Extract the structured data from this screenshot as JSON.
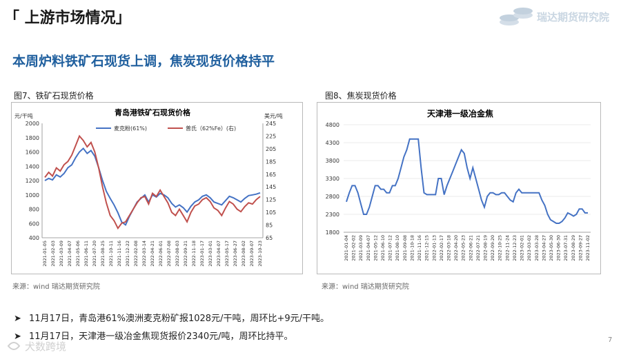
{
  "header": {
    "section_title": "「 上游市场情况」",
    "logo_text": "瑞达期货研究院"
  },
  "headline": "本周炉料铁矿石现货上调，焦炭现货价格持平",
  "figures": {
    "fig7": {
      "caption": "图7、铁矿石现货价格",
      "source": "来源：wind   瑞达期货研究院"
    },
    "fig8": {
      "caption": "图8、焦炭现货价格",
      "source": "来源：wind   瑞达期货研究院"
    }
  },
  "bullets": [
    "11月17日，青岛港61%澳洲麦克粉矿报1028元/干吨，周环比+9元/干吨。",
    "11月17日，天津港一级冶金焦现货报价2340元/吨，周环比持平。"
  ],
  "page_number": "7",
  "watermark_text": "犬数跨境",
  "chart_data": [
    {
      "type": "line",
      "title": "青岛港铁矿石现货价格",
      "ylabel": "元/干吨",
      "y2label": "美元/吨",
      "ylim": [
        400,
        2000
      ],
      "yticks": [
        400,
        600,
        800,
        1000,
        1200,
        1400,
        1600,
        1800,
        2000
      ],
      "y2lim": [
        65,
        245
      ],
      "y2ticks": [
        65,
        85,
        105,
        125,
        145,
        165,
        185,
        205,
        225,
        245
      ],
      "legend_position": "top-center",
      "xticks": [
        "2021-01-05",
        "2021-02-03",
        "2021-03-09",
        "2021-04-07",
        "2021-05-06",
        "2021-06-11",
        "2021-07-20",
        "2021-08-25",
        "2021-10-11",
        "2021-11-16",
        "2021-12-22",
        "2022-02-08",
        "2022-03-14",
        "2022-04-21",
        "2022-06-01",
        "2022-07-08",
        "2022-08-03",
        "2022-09-21",
        "2022-11-18",
        "2023-01-17",
        "2023-03-01",
        "2023-04-07",
        "2023-05-17",
        "2023-06-27",
        "2023-08-02",
        "2023-09-07",
        "2023-10-23"
      ],
      "series": [
        {
          "name": "麦克粉(61%)",
          "axis": "left",
          "color": "#4472c4",
          "values": [
            1200,
            1230,
            1210,
            1280,
            1250,
            1300,
            1380,
            1420,
            1520,
            1600,
            1650,
            1580,
            1620,
            1540,
            1380,
            1200,
            1050,
            950,
            860,
            750,
            620,
            580,
            700,
            800,
            900,
            950,
            1000,
            900,
            1000,
            970,
            1020,
            1000,
            960,
            880,
            830,
            860,
            820,
            760,
            840,
            900,
            930,
            980,
            1000,
            960,
            900,
            880,
            860,
            920,
            980,
            960,
            930,
            900,
            950,
            990,
            1000,
            1010,
            1028
          ]
        },
        {
          "name": "普氏（62%Fe）(右)",
          "axis": "right",
          "color": "#c0504d",
          "values": [
            160,
            168,
            162,
            175,
            170,
            180,
            185,
            195,
            210,
            225,
            218,
            208,
            215,
            200,
            175,
            145,
            120,
            100,
            92,
            80,
            88,
            90,
            100,
            110,
            120,
            128,
            130,
            118,
            135,
            130,
            140,
            130,
            120,
            105,
            100,
            110,
            100,
            90,
            105,
            115,
            118,
            125,
            128,
            122,
            112,
            108,
            100,
            112,
            122,
            118,
            110,
            106,
            114,
            120,
            118,
            125,
            130
          ]
        }
      ]
    },
    {
      "type": "line",
      "title": "天津港一级冶金焦",
      "ylim": [
        1800,
        4800
      ],
      "yticks": [
        1800,
        2300,
        2800,
        3300,
        3800,
        4300,
        4800
      ],
      "xticks": [
        "2021-01-04",
        "2021-02-02",
        "2021-03-09",
        "2021-04-07",
        "2021-05-12",
        "2021-06-10",
        "2021-07-12",
        "2021-08-10",
        "2021-09-08",
        "2021-10-18",
        "2021-11-16",
        "2021-12-15",
        "2022-01-13",
        "2022-02-17",
        "2022-03-18",
        "2022-04-20",
        "2022-05-23",
        "2022-06-21",
        "2022-07-21",
        "2022-08-19",
        "2022-09-20",
        "2022-10-25",
        "2022-11-24",
        "2022-12-23",
        "2023-02-01",
        "2023-03-02",
        "2023-03-28",
        "2023-04-27",
        "2023-05-30",
        "2023-06-30",
        "2023-07-31",
        "2023-08-29",
        "2023-09-27",
        "2023-11-02"
      ],
      "series": [
        {
          "name": "",
          "color": "#4472c4",
          "values": [
            2650,
            2900,
            3100,
            3100,
            2900,
            2600,
            2300,
            2300,
            2500,
            2800,
            3100,
            3100,
            3000,
            3000,
            2900,
            2900,
            3100,
            3100,
            3300,
            3600,
            3900,
            4100,
            4400,
            4400,
            4400,
            4400,
            3600,
            2900,
            2850,
            2850,
            2850,
            2850,
            3300,
            3300,
            2850,
            3100,
            3300,
            3500,
            3700,
            3900,
            4100,
            4000,
            3600,
            3300,
            3600,
            3300,
            3000,
            2700,
            2500,
            2800,
            2900,
            2900,
            2850,
            2850,
            2900,
            2900,
            2800,
            2700,
            2650,
            2900,
            3000,
            2900,
            2900,
            2900,
            2900,
            2900,
            2900,
            2900,
            2700,
            2550,
            2300,
            2150,
            2100,
            2050,
            2050,
            2100,
            2200,
            2340,
            2300,
            2250,
            2300,
            2450,
            2450,
            2340,
            2340
          ]
        }
      ]
    }
  ]
}
